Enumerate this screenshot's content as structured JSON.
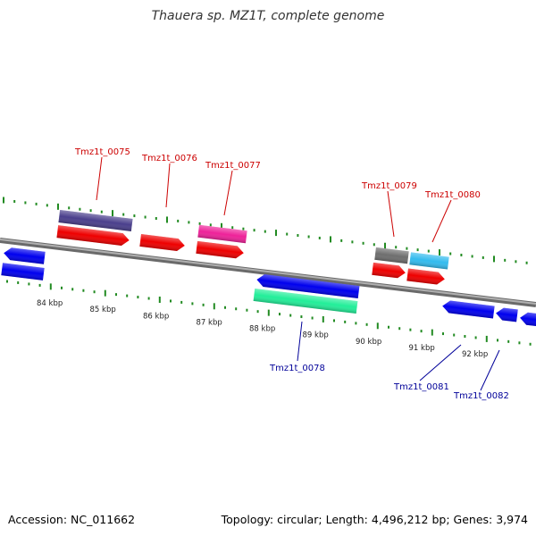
{
  "title": "Thauera sp. MZ1T, complete genome",
  "footer": {
    "accession": "Accession: NC_011662",
    "summary": "Topology: circular; Length: 4,496,212 bp; Genes: 3,974"
  },
  "colors": {
    "forward_label": "#cc0000",
    "reverse_label": "#000099",
    "tick": "#228b22",
    "backbone": "#8c8c8c"
  },
  "scale": {
    "unit": "kbp",
    "major_ticks": [
      84,
      85,
      86,
      87,
      88,
      89,
      90,
      91,
      92
    ],
    "major_tick_labels": [
      "84 kbp",
      "85 kbp",
      "86 kbp",
      "87 kbp",
      "88 kbp",
      "89 kbp",
      "90 kbp",
      "91 kbp",
      "92 kbp"
    ]
  },
  "gene_labels": [
    {
      "text": "Tmz1t_0075",
      "strand": "forward"
    },
    {
      "text": "Tmz1t_0076",
      "strand": "forward"
    },
    {
      "text": "Tmz1t_0077",
      "strand": "forward"
    },
    {
      "text": "Tmz1t_0079",
      "strand": "forward"
    },
    {
      "text": "Tmz1t_0080",
      "strand": "forward"
    },
    {
      "text": "Tmz1t_0078",
      "strand": "reverse"
    },
    {
      "text": "Tmz1t_0081",
      "strand": "reverse"
    },
    {
      "text": "Tmz1t_0082",
      "strand": "reverse"
    }
  ],
  "features": [
    {
      "name": "gene-forward-1",
      "color": "#ee0000",
      "type": "CDS"
    },
    {
      "name": "gene-forward-2",
      "color": "#ee0000",
      "type": "CDS"
    },
    {
      "name": "gene-forward-3",
      "color": "#ee0000",
      "type": "CDS"
    },
    {
      "name": "gene-forward-4",
      "color": "#ee0000",
      "type": "CDS"
    },
    {
      "name": "gene-forward-5",
      "color": "#ee0000",
      "type": "CDS"
    },
    {
      "name": "cog-forward-1",
      "color": "#4a3f8c",
      "type": "COG"
    },
    {
      "name": "cog-forward-2",
      "color": "#ee2299",
      "type": "COG"
    },
    {
      "name": "cog-forward-3",
      "color": "#6e6e6e",
      "type": "COG"
    },
    {
      "name": "cog-forward-4",
      "color": "#33bbee",
      "type": "COG"
    },
    {
      "name": "gene-reverse-1",
      "color": "#0000ee",
      "type": "CDS"
    },
    {
      "name": "gene-reverse-2",
      "color": "#0000ee",
      "type": "CDS"
    },
    {
      "name": "gene-reverse-3",
      "color": "#0000ee",
      "type": "CDS"
    },
    {
      "name": "gene-reverse-4",
      "color": "#0000ee",
      "type": "CDS"
    },
    {
      "name": "gene-reverse-5",
      "color": "#0000ee",
      "type": "CDS"
    },
    {
      "name": "gene-reverse-6",
      "color": "#0000ee",
      "type": "CDS"
    },
    {
      "name": "cog-reverse-1",
      "color": "#22ee99",
      "type": "COG"
    }
  ]
}
